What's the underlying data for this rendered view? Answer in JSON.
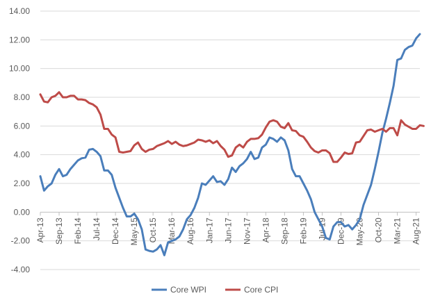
{
  "chart_data": {
    "type": "line",
    "title": "",
    "xlabel": "",
    "ylabel": "",
    "ylim": [
      -4,
      14
    ],
    "y_ticks": [
      "-4.00",
      "-2.00",
      "0.00",
      "2.00",
      "4.00",
      "6.00",
      "8.00",
      "10.00",
      "12.00",
      "14.00"
    ],
    "x_tick_labels": [
      "Apr-13",
      "Sep-13",
      "Feb-14",
      "Jul-14",
      "Dec-14",
      "May-15",
      "Oct-15",
      "Mar-16",
      "Aug-16",
      "Jan-17",
      "Jun-17",
      "Nov-17",
      "Apr-18",
      "Sep-18",
      "Feb-19",
      "Jul-19",
      "Dec-19",
      "May-20",
      "Oct-20",
      "Mar-21",
      "Aug-21"
    ],
    "grid": "horizontal",
    "legend_position": "bottom",
    "x_start": "Apr-13",
    "series": [
      {
        "name": "Core WPI",
        "color": "#4a7ebb",
        "values": [
          2.5,
          1.5,
          1.8,
          2.0,
          2.6,
          3.0,
          2.5,
          2.6,
          3.0,
          3.3,
          3.6,
          3.75,
          3.8,
          4.35,
          4.4,
          4.2,
          3.9,
          2.9,
          2.9,
          2.6,
          1.7,
          1.0,
          0.3,
          -0.3,
          -0.3,
          -0.1,
          -0.5,
          -1.2,
          -2.6,
          -2.7,
          -2.75,
          -2.6,
          -2.3,
          -3.0,
          -2.1,
          -2.0,
          -1.9,
          -1.7,
          -1.2,
          -0.5,
          -0.2,
          0.3,
          1.0,
          2.0,
          1.9,
          2.2,
          2.5,
          2.1,
          2.15,
          1.9,
          2.3,
          3.1,
          2.8,
          3.2,
          3.4,
          3.7,
          4.2,
          3.7,
          3.8,
          4.5,
          4.7,
          5.2,
          5.1,
          4.9,
          5.2,
          5.0,
          4.3,
          3.0,
          2.5,
          2.5,
          2.0,
          1.5,
          0.9,
          0.0,
          -0.5,
          -1.0,
          -1.8,
          -1.9,
          -1.0,
          -0.7,
          -0.7,
          -1.0,
          -0.9,
          -1.2,
          -0.9,
          -0.5,
          0.5,
          1.2,
          1.9,
          3.0,
          4.2,
          5.5,
          6.5,
          7.6,
          8.8,
          10.6,
          10.7,
          11.3,
          11.5,
          11.6,
          12.1,
          12.4
        ]
      },
      {
        "name": "Core CPI",
        "color": "#be4b48",
        "values": [
          8.2,
          7.7,
          7.65,
          8.0,
          8.1,
          8.35,
          8.0,
          8.0,
          8.1,
          8.1,
          7.85,
          7.85,
          7.8,
          7.6,
          7.5,
          7.3,
          6.8,
          5.8,
          5.8,
          5.4,
          5.2,
          4.2,
          4.15,
          4.2,
          4.25,
          4.65,
          4.85,
          4.4,
          4.2,
          4.35,
          4.4,
          4.6,
          4.7,
          4.8,
          4.95,
          4.75,
          4.9,
          4.7,
          4.6,
          4.65,
          4.75,
          4.85,
          5.05,
          5.0,
          4.9,
          5.0,
          4.8,
          4.95,
          4.6,
          4.35,
          3.85,
          3.95,
          4.5,
          4.7,
          4.5,
          4.9,
          5.1,
          5.1,
          5.15,
          5.4,
          5.9,
          6.3,
          6.4,
          6.3,
          5.95,
          5.85,
          6.2,
          5.7,
          5.65,
          5.35,
          5.25,
          4.9,
          4.5,
          4.25,
          4.15,
          4.3,
          4.3,
          4.1,
          3.5,
          3.5,
          3.8,
          4.15,
          4.05,
          4.1,
          4.85,
          4.9,
          5.3,
          5.7,
          5.75,
          5.6,
          5.7,
          5.8,
          5.6,
          5.85,
          5.85,
          5.35,
          6.4,
          6.1,
          5.95,
          5.8,
          5.8,
          6.05,
          6.0
        ]
      }
    ]
  }
}
